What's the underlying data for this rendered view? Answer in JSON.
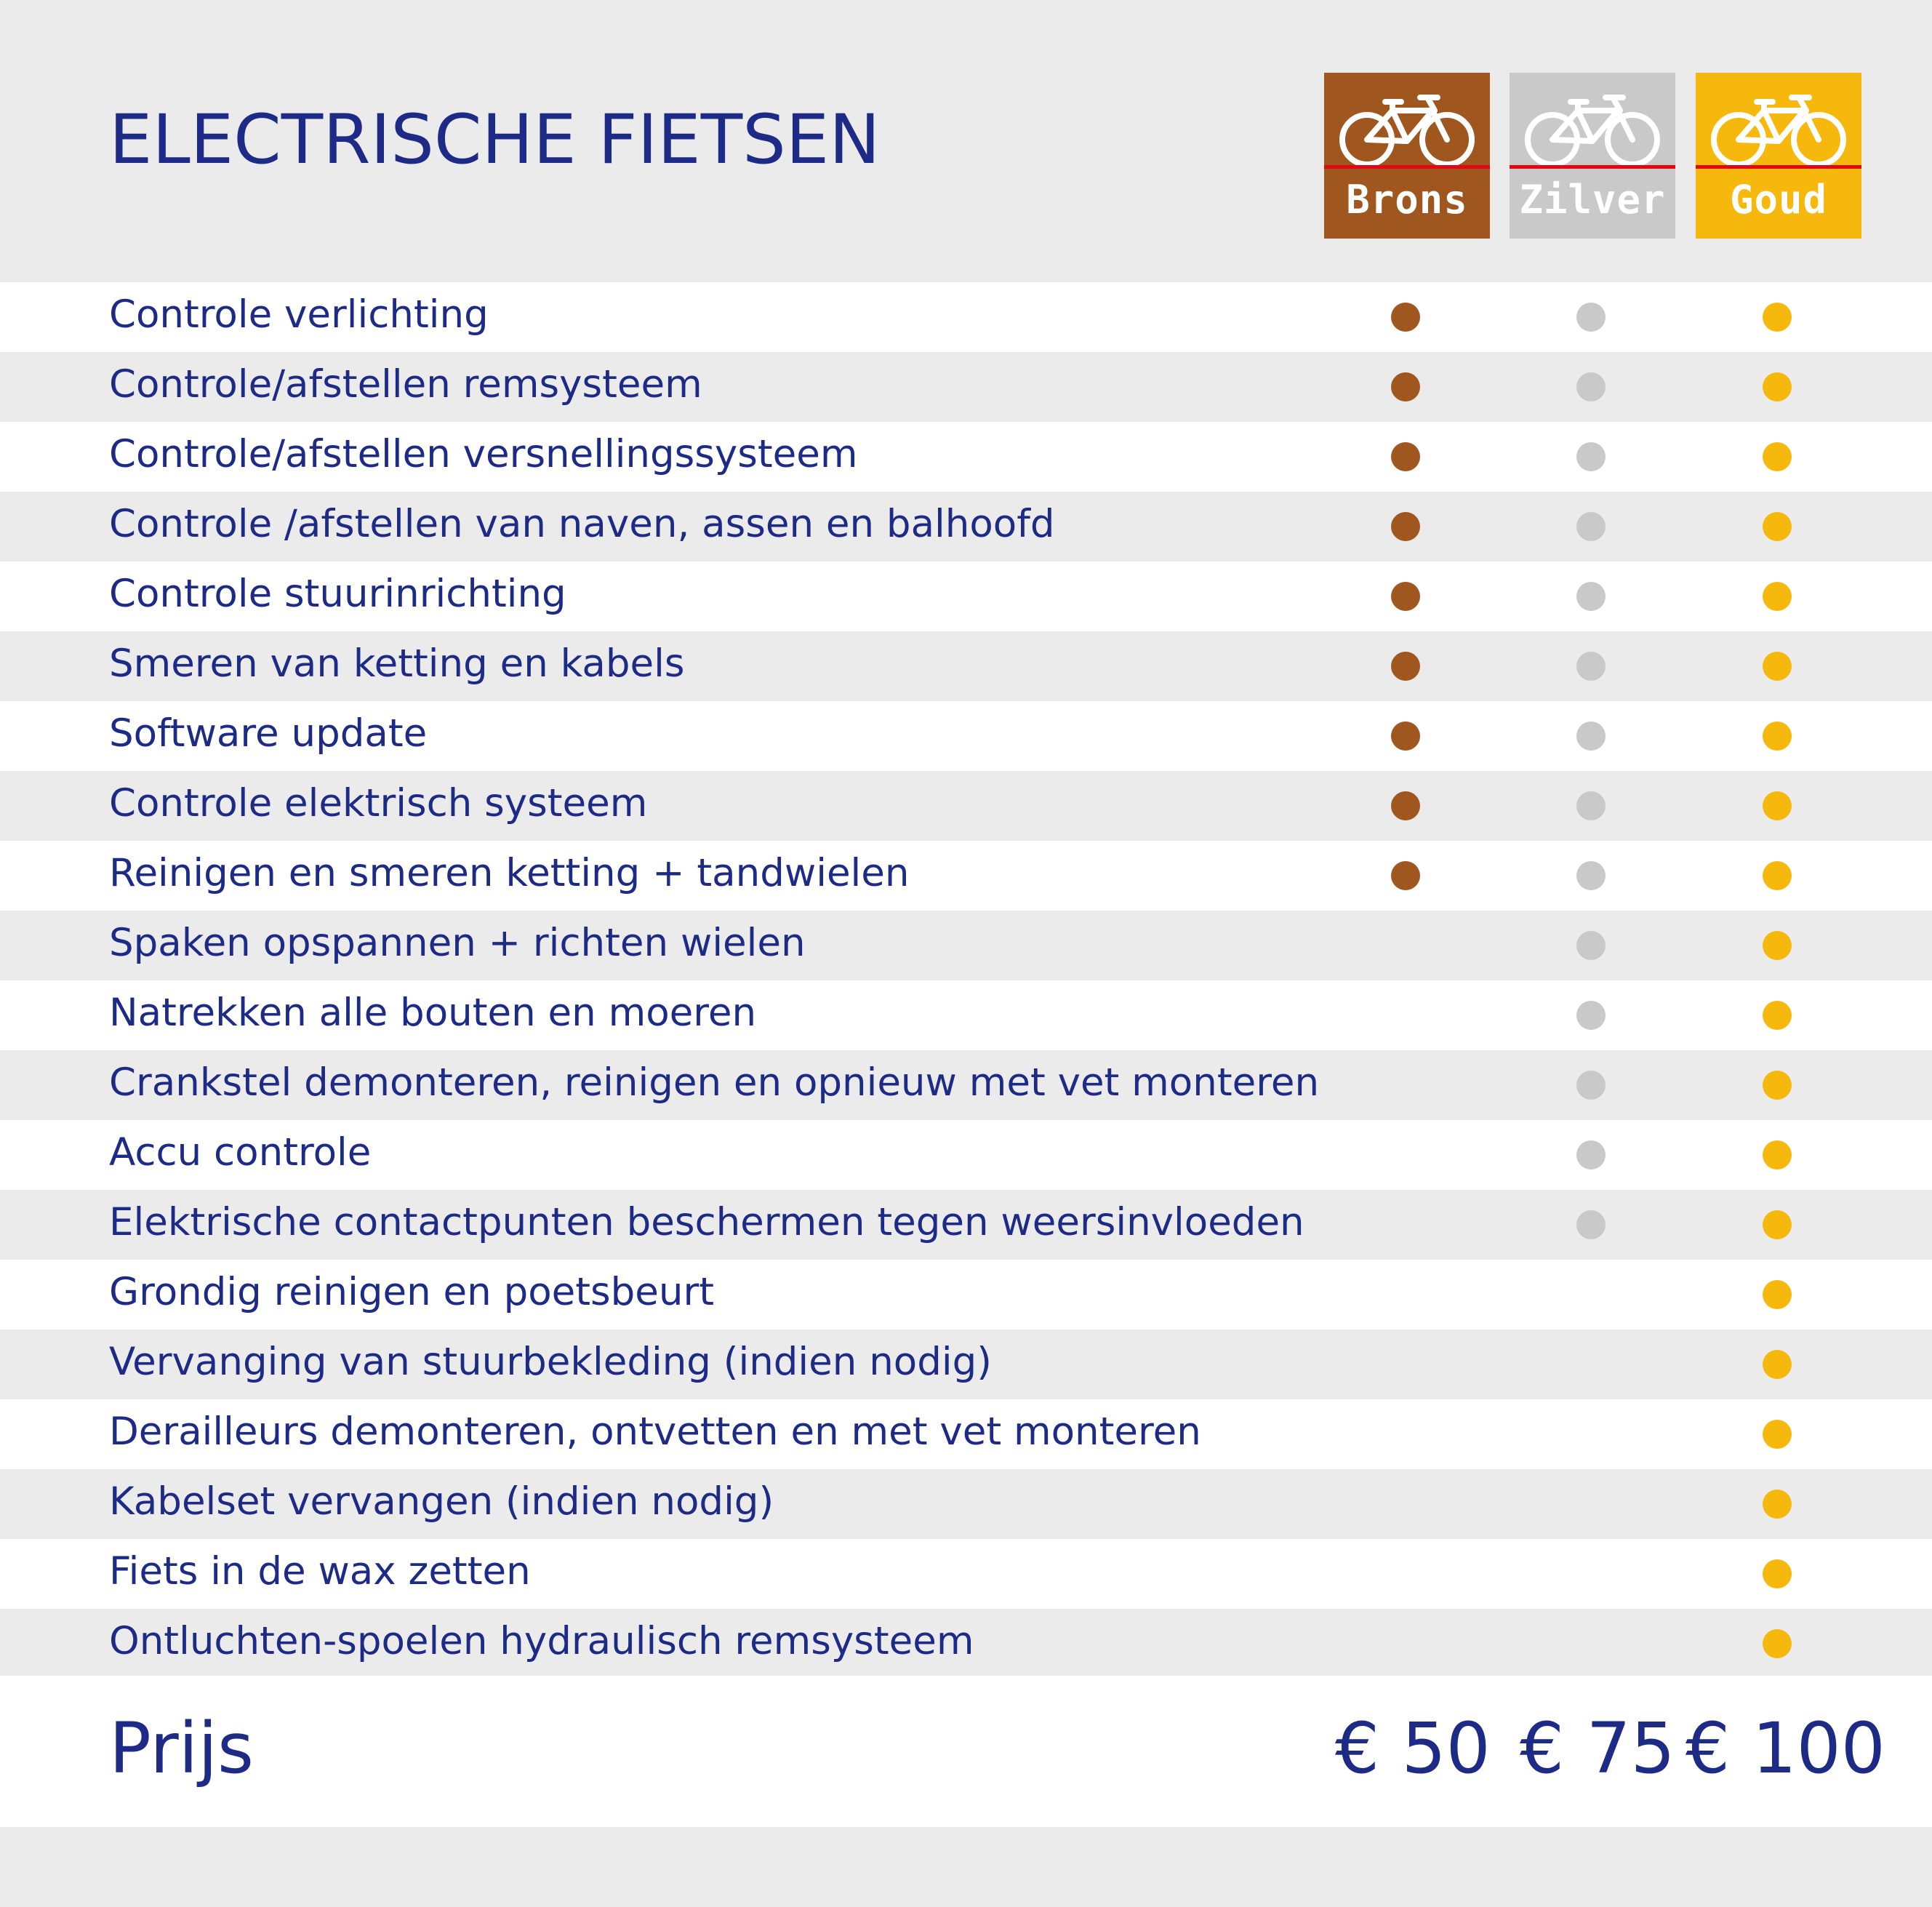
{
  "title": "ELECTRISCHE FIETSEN",
  "packages": [
    {
      "name": "Brons",
      "color": "#a0561f",
      "price": "€ 50"
    },
    {
      "name": "Zilver",
      "color": "#c9c9c9",
      "price": "€ 75"
    },
    {
      "name": "Goud",
      "color": "#f6b80c",
      "price": "€ 100"
    }
  ],
  "rows": [
    {
      "label": "Controle verlichting",
      "brons": true,
      "zilver": true,
      "goud": true
    },
    {
      "label": "Controle/afstellen remsysteem",
      "brons": true,
      "zilver": true,
      "goud": true
    },
    {
      "label": "Controle/afstellen versnellingssysteem",
      "brons": true,
      "zilver": true,
      "goud": true
    },
    {
      "label": "Controle /afstellen van naven, assen en balhoofd",
      "brons": true,
      "zilver": true,
      "goud": true
    },
    {
      "label": "Controle stuurinrichting",
      "brons": true,
      "zilver": true,
      "goud": true
    },
    {
      "label": "Smeren van ketting en kabels",
      "brons": true,
      "zilver": true,
      "goud": true
    },
    {
      "label": "Software update",
      "brons": true,
      "zilver": true,
      "goud": true
    },
    {
      "label": "Controle elektrisch systeem",
      "brons": true,
      "zilver": true,
      "goud": true
    },
    {
      "label": "Reinigen en smeren ketting + tandwielen",
      "brons": true,
      "zilver": true,
      "goud": true
    },
    {
      "label": "Spaken opspannen + richten wielen",
      "brons": false,
      "zilver": true,
      "goud": true
    },
    {
      "label": "Natrekken alle bouten en moeren",
      "brons": false,
      "zilver": true,
      "goud": true
    },
    {
      "label": "Crankstel demonteren, reinigen en opnieuw met vet monteren",
      "brons": false,
      "zilver": true,
      "goud": true
    },
    {
      "label": "Accu controle",
      "brons": false,
      "zilver": true,
      "goud": true
    },
    {
      "label": "Elektrische contactpunten beschermen tegen weersinvloeden",
      "brons": false,
      "zilver": true,
      "goud": true
    },
    {
      "label": "Grondig reinigen en poetsbeurt",
      "brons": false,
      "zilver": false,
      "goud": true
    },
    {
      "label": "Vervanging van stuurbekleding (indien nodig)",
      "brons": false,
      "zilver": false,
      "goud": true
    },
    {
      "label": "Derailleurs demonteren, ontvetten en met vet monteren",
      "brons": false,
      "zilver": false,
      "goud": true
    },
    {
      "label": "Kabelset vervangen (indien nodig)",
      "brons": false,
      "zilver": false,
      "goud": true
    },
    {
      "label": "Fiets in de wax zetten",
      "brons": false,
      "zilver": false,
      "goud": true
    },
    {
      "label": "Ontluchten-spoelen hydraulisch remsysteem",
      "brons": false,
      "zilver": false,
      "goud": true
    }
  ],
  "price_label": "Prijs",
  "icons": {
    "badge": "bicycle-icon",
    "included": "dot-icon"
  }
}
